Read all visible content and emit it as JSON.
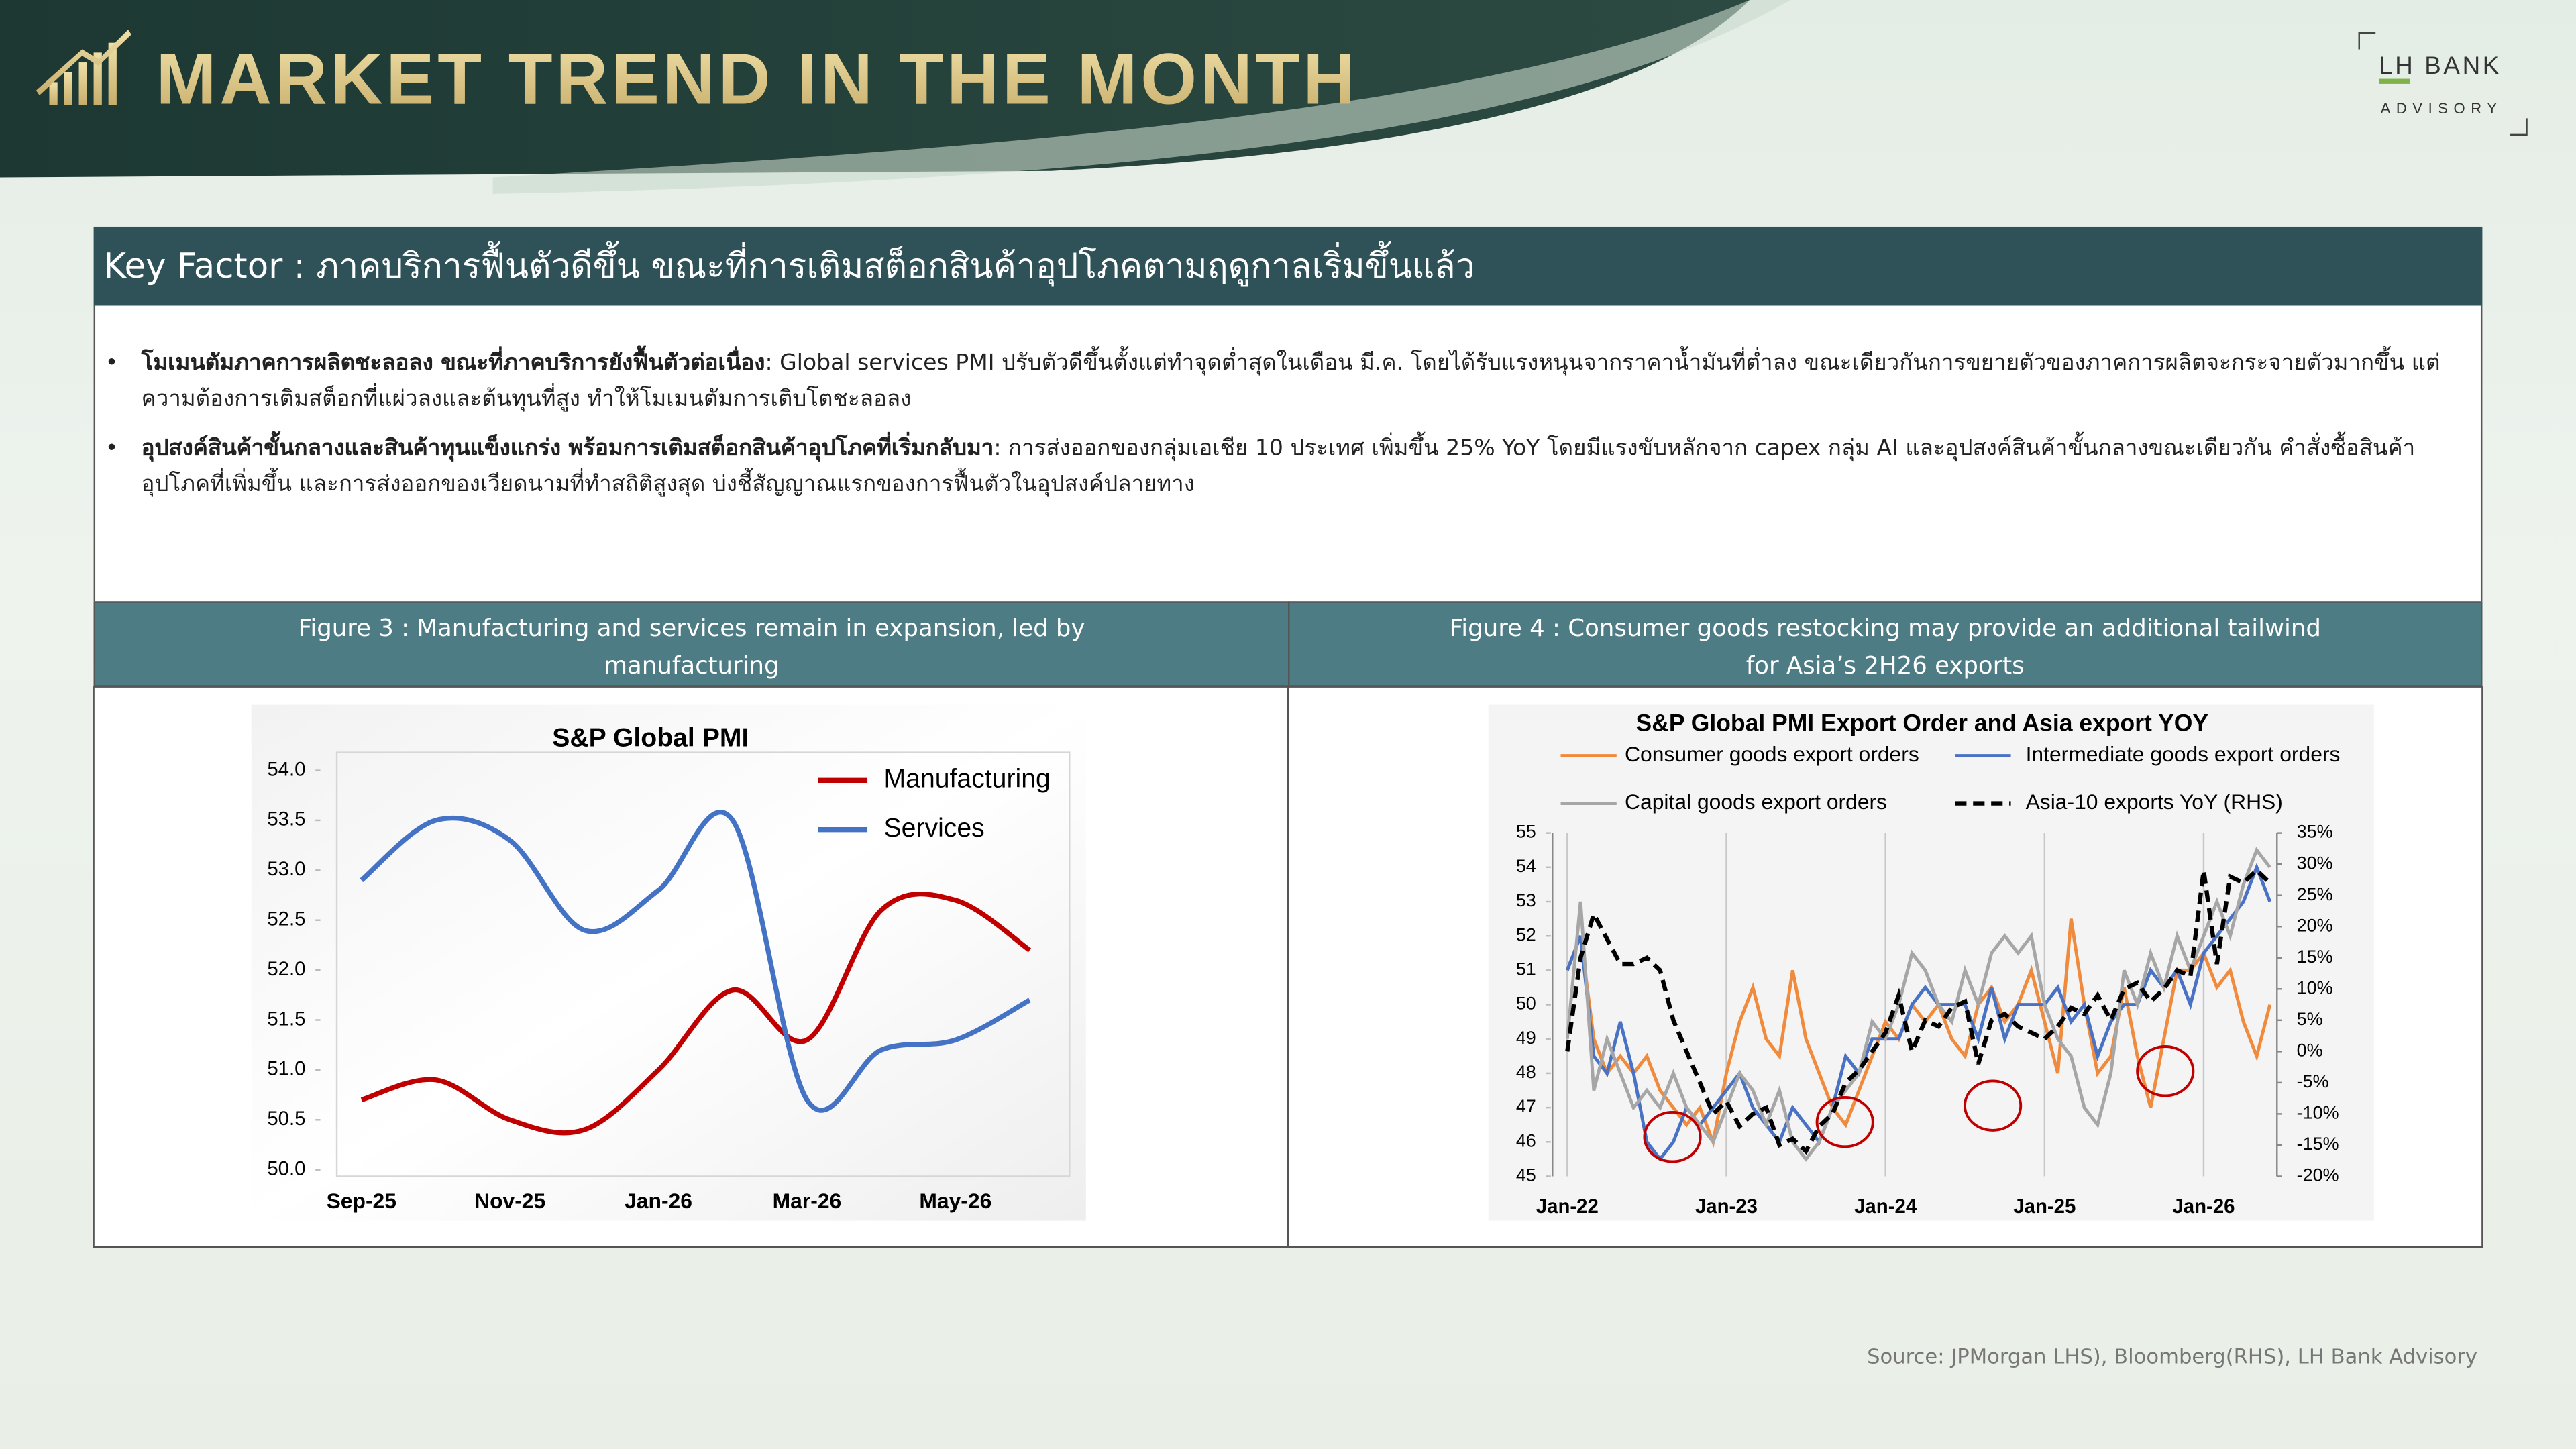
{
  "header": {
    "title": "MARKET TREND IN THE MONTH",
    "logo": "LH BANK",
    "logo_sub": "ADVISORY"
  },
  "key_factor": "Key Factor : ภาคบริการฟื้นตัวดีขึ้น ขณะที่การเติมสต็อกสินค้าอุปโภคตามฤดูกาลเริ่มขึ้นแล้ว",
  "bullets": [
    {
      "bold": "โมเมนตัมภาคการผลิตชะลอลง ขณะที่ภาคบริการยังฟื้นตัวต่อเนื่อง",
      "text": ": Global services PMI ปรับตัวดีขึ้นตั้งแต่ทำจุดต่ำสุดในเดือน มี.ค. โดยได้รับแรงหนุนจากราคาน้ำมันที่ต่ำลง ขณะเดียวกันการขยายตัวของภาคการผลิตจะกระจายตัวมากขึ้น แต่ความต้องการเติมสต็อกที่แผ่วลงและต้นทุนที่สูง ทำให้โมเมนตัมการเติบโตชะลอลง"
    },
    {
      "bold": "อุปสงค์สินค้าขั้นกลางและสินค้าทุนแข็งแกร่ง พร้อมการเติมสต็อกสินค้าอุปโภคที่เริ่มกลับมา",
      "text": ": การส่งออกของกลุ่มเอเชีย 10 ประเทศ เพิ่มขึ้น 25% YoY โดยมีแรงขับหลักจาก capex กลุ่ม AI และอุปสงค์สินค้าขั้นกลางขณะเดียวกัน คำสั่งซื้อสินค้าอุปโภคที่เพิ่มขึ้น และการส่งออกของเวียดนามที่ทำสถิติสูงสุด บ่งชี้สัญญาณแรกของการฟื้นตัวในอุปสงค์ปลายทาง"
    }
  ],
  "figures": [
    "Figure 3 : Manufacturing and services remain in expansion, led by manufacturing",
    "Figure 4 : Consumer goods restocking may provide an additional tailwind for Asia’s 2H26 exports"
  ],
  "source": "Source: JPMorgan LHS), Bloomberg(RHS), LH Bank Advisory",
  "chart_data": [
    {
      "type": "line",
      "title": "S&P Global PMI",
      "smooth": true,
      "grid": false,
      "legend": "top-right",
      "categories": [
        "Sep-25",
        null,
        "Nov-25",
        null,
        "Jan-26",
        null,
        "Mar-26",
        null,
        "May-26",
        null
      ],
      "ylim": [
        50,
        54
      ],
      "yticks": [
        {
          "value": 50,
          "label": "50.0"
        },
        50.5,
        {
          "value": 51,
          "label": "51.0"
        },
        51.5,
        {
          "value": 52,
          "label": "52.0"
        },
        52.5,
        {
          "value": 53,
          "label": "53.0"
        },
        53.5,
        {
          "value": 54,
          "label": "54.0"
        }
      ],
      "series": [
        {
          "name": "Manufacturing",
          "color": "#c00000",
          "values": [
            50.7,
            50.9,
            50.5,
            50.4,
            51.0,
            51.8,
            51.3,
            52.6,
            52.7,
            52.2
          ]
        },
        {
          "name": "Services",
          "color": "#4472c4",
          "values": [
            52.9,
            53.5,
            53.3,
            52.4,
            52.8,
            53.5,
            50.7,
            51.2,
            51.3,
            51.7
          ]
        }
      ]
    },
    {
      "type": "line",
      "title": "S&P Global PMI Export Order and Asia export YOY",
      "smooth": false,
      "grid": "x",
      "legend": "top",
      "categories": [
        "Jan-22",
        null,
        null,
        null,
        null,
        null,
        null,
        null,
        null,
        null,
        null,
        null,
        "Jan-23",
        null,
        null,
        null,
        null,
        null,
        null,
        null,
        null,
        null,
        null,
        null,
        "Jan-24",
        null,
        null,
        null,
        null,
        null,
        null,
        null,
        null,
        null,
        null,
        null,
        "Jan-25",
        null,
        null,
        null,
        null,
        null,
        null,
        null,
        null,
        null,
        null,
        null,
        "Jan-26",
        null,
        null,
        null,
        null,
        null
      ],
      "ylim": [
        45,
        55
      ],
      "yticks": [
        45,
        46,
        47,
        48,
        49,
        50,
        51,
        52,
        53,
        54,
        55
      ],
      "y2lim": [
        -20,
        35
      ],
      "y2ticks": [
        {
          "value": -20,
          "label": "-20%"
        },
        {
          "value": -15,
          "label": "-15%"
        },
        {
          "value": -10,
          "label": "-10%"
        },
        {
          "value": -5,
          "label": "-5%"
        },
        {
          "value": 0,
          "label": "0%"
        },
        {
          "value": 5,
          "label": "5%"
        },
        {
          "value": 10,
          "label": "10%"
        },
        {
          "value": 15,
          "label": "15%"
        },
        {
          "value": 20,
          "label": "20%"
        },
        {
          "value": 25,
          "label": "25%"
        },
        {
          "value": 30,
          "label": "30%"
        },
        {
          "value": 35,
          "label": "35%"
        }
      ],
      "series": [
        {
          "name": "Consumer goods export orders",
          "color": "#f08a3c",
          "values": [
            51,
            52,
            49,
            48,
            48.5,
            48,
            48.5,
            47.5,
            47,
            46.5,
            47,
            46,
            48,
            49.5,
            50.5,
            49,
            48.5,
            51,
            49,
            48,
            47,
            46.5,
            47.5,
            48.5,
            49.5,
            49,
            50,
            49.5,
            50,
            49,
            48.5,
            50,
            50.5,
            49.5,
            50,
            51,
            49.5,
            48,
            52.5,
            50,
            48,
            48.5,
            50.5,
            48.5,
            47,
            49,
            51,
            51,
            51.5,
            50.5,
            51,
            49.5,
            48.5,
            50
          ]
        },
        {
          "name": "Intermediate goods export orders",
          "color": "#4a72c4",
          "values": [
            51,
            52,
            48.5,
            48,
            49.5,
            48,
            46,
            45.5,
            46,
            47,
            46.5,
            47,
            47.5,
            48,
            47,
            46.5,
            46,
            47,
            46.5,
            46,
            47,
            48.5,
            48,
            49,
            49,
            49,
            50,
            50.5,
            50,
            50,
            50,
            49,
            50.5,
            49,
            50,
            50,
            50,
            50.5,
            49.5,
            50,
            48.5,
            49.5,
            50,
            50,
            51,
            50.5,
            51,
            50,
            51.5,
            52,
            52.5,
            53,
            54,
            53
          ]
        },
        {
          "name": "Capital goods export orders",
          "color": "#a6a6a6",
          "values": [
            49,
            53,
            47.5,
            49,
            48,
            47,
            47.5,
            47,
            48,
            47,
            46.5,
            46,
            47,
            48,
            47.5,
            46.5,
            47.5,
            46,
            45.5,
            46,
            47,
            47.5,
            48,
            49.5,
            49,
            50,
            51.5,
            51,
            50,
            49.5,
            51,
            50,
            51.5,
            52,
            51.5,
            52,
            50,
            49,
            48.5,
            47,
            46.5,
            48,
            51,
            50,
            51.5,
            50.5,
            52,
            51,
            52,
            53,
            52,
            53.5,
            54.5,
            54
          ]
        },
        {
          "name": "Asia-10 exports YoY (RHS)",
          "color": "#000000",
          "axis": "y2",
          "dashed": true,
          "values": [
            0,
            15,
            22,
            18,
            14,
            14,
            15,
            13,
            5,
            0,
            -5,
            -10,
            -8,
            -12,
            -10,
            -9,
            -15,
            -14,
            -16,
            -12,
            -10,
            -5,
            -3,
            0,
            3,
            9,
            0,
            5,
            4,
            7,
            8,
            -2,
            5,
            6,
            4,
            3,
            2,
            4,
            7,
            6,
            9,
            5,
            10,
            11,
            8,
            10,
            13,
            12,
            29,
            14,
            28,
            27,
            29,
            27
          ]
        }
      ]
    }
  ]
}
